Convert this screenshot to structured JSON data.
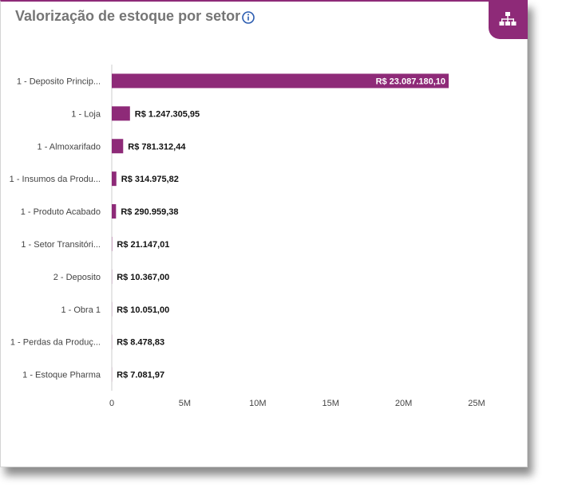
{
  "header": {
    "title": "Valorização de estoque por setor",
    "info_icon": "info-circle-icon",
    "corner_icon": "sitemap-icon"
  },
  "colors": {
    "accent": "#8e2a78",
    "title": "#757575",
    "axis": "#cccccc"
  },
  "chart_data": {
    "type": "bar",
    "orientation": "horizontal",
    "title": "Valorização de estoque por setor",
    "categories": [
      "1 - Deposito Princip...",
      "1 - Loja",
      "1 - Almoxarifado",
      "1 - Insumos da Produ...",
      "1 - Produto Acabado",
      "1 - Setor Transitóri...",
      "2 - Deposito",
      "1 - Obra 1",
      "1 - Perdas da Produç...",
      "1 - Estoque Pharma"
    ],
    "values": [
      23087180.1,
      1247305.95,
      781312.44,
      314975.82,
      290959.38,
      21147.01,
      10367.0,
      10051.0,
      8478.83,
      7081.97
    ],
    "data_labels": [
      "R$ 23.087.180,10",
      "R$ 1.247.305,95",
      "R$ 781.312,44",
      "R$ 314.975,82",
      "R$ 290.959,38",
      "R$ 21.147,01",
      "R$ 10.367,00",
      "R$ 10.051,00",
      "R$ 8.478,83",
      "R$ 7.081,97"
    ],
    "xlim": [
      0,
      25000000
    ],
    "x_ticks": [
      0,
      5000000,
      10000000,
      15000000,
      20000000,
      25000000
    ],
    "x_tick_labels": [
      "0",
      "5M",
      "10M",
      "15M",
      "20M",
      "25M"
    ],
    "grid": false,
    "legend": "none",
    "bar_color": "#8e2a78"
  }
}
